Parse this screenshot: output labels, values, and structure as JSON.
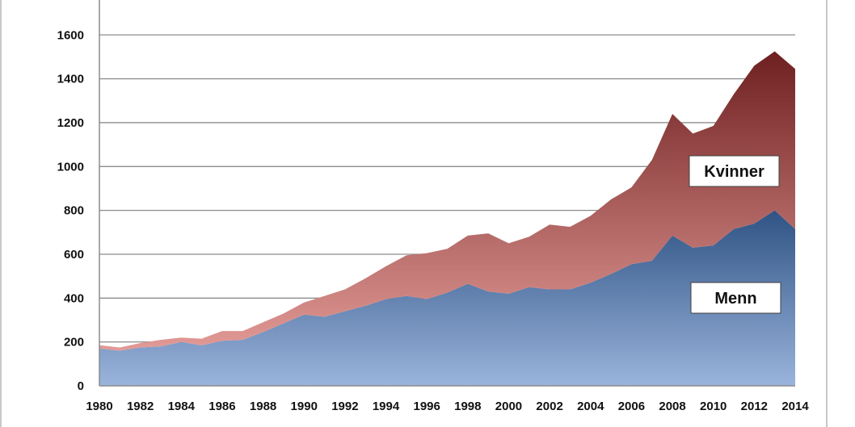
{
  "chart_data": {
    "type": "area",
    "stacked": true,
    "title": "",
    "xlabel": "",
    "ylabel": "",
    "ylim": [
      0,
      1700
    ],
    "yticks": [
      0,
      200,
      400,
      600,
      800,
      1000,
      1200,
      1400,
      1600
    ],
    "xticks": [
      1980,
      1982,
      1984,
      1986,
      1988,
      1990,
      1992,
      1994,
      1996,
      1998,
      2000,
      2002,
      2004,
      2006,
      2008,
      2010,
      2012,
      2014
    ],
    "grid": true,
    "x": [
      1980,
      1981,
      1982,
      1983,
      1984,
      1985,
      1986,
      1987,
      1988,
      1989,
      1990,
      1991,
      1992,
      1993,
      1994,
      1995,
      1996,
      1997,
      1998,
      1999,
      2000,
      2001,
      2002,
      2003,
      2004,
      2005,
      2006,
      2007,
      2008,
      2009,
      2010,
      2011,
      2012,
      2013,
      2014
    ],
    "series": [
      {
        "name": "Menn",
        "color_top": "#2f5384",
        "color_bottom": "#9ab4dc",
        "values": [
          170,
          160,
          175,
          180,
          200,
          185,
          205,
          210,
          245,
          285,
          325,
          315,
          340,
          365,
          395,
          410,
          395,
          425,
          465,
          430,
          420,
          450,
          440,
          440,
          470,
          510,
          555,
          570,
          685,
          630,
          640,
          715,
          740,
          800,
          715
        ]
      },
      {
        "name": "Kvinner",
        "color_top": "#6e2020",
        "color_bottom": "#e29a96",
        "values": [
          15,
          15,
          20,
          30,
          20,
          30,
          45,
          40,
          45,
          45,
          55,
          95,
          100,
          125,
          150,
          185,
          210,
          200,
          220,
          265,
          230,
          230,
          295,
          285,
          305,
          340,
          350,
          460,
          555,
          520,
          545,
          615,
          720,
          725,
          730
        ]
      }
    ]
  }
}
